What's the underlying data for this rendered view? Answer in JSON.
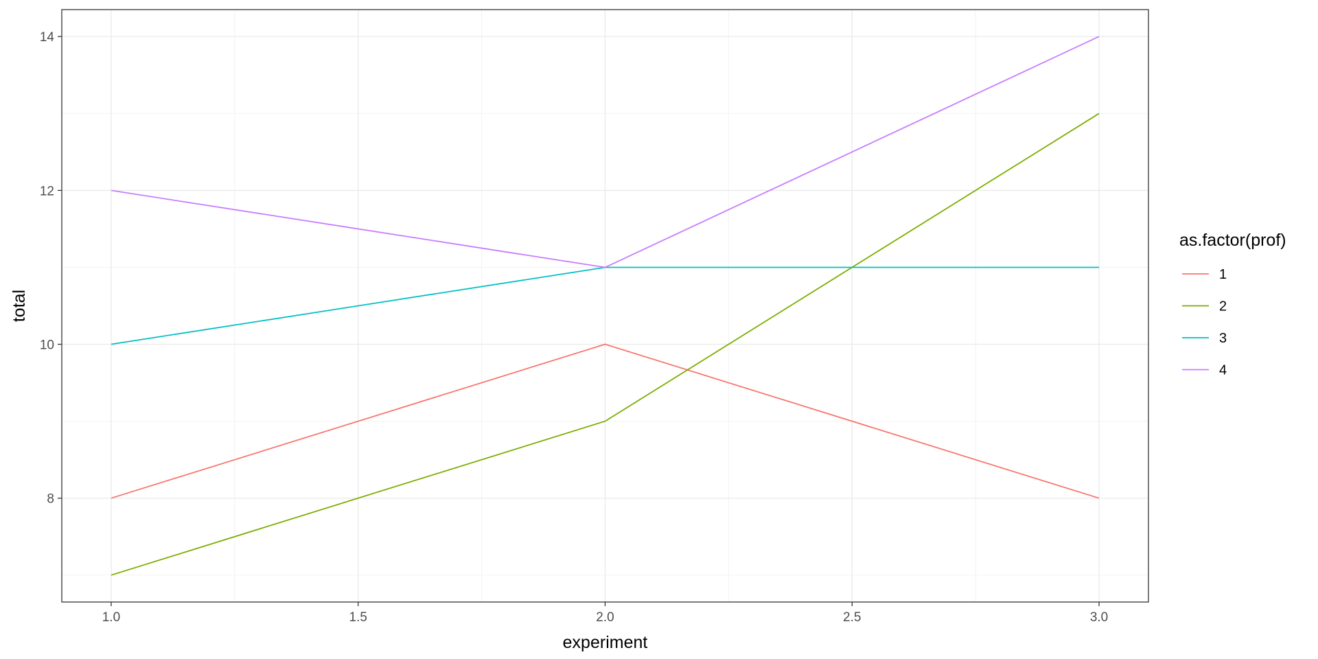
{
  "chart_data": {
    "type": "line",
    "xlabel": "experiment",
    "ylabel": "total",
    "xlim": [
      0.9,
      3.1
    ],
    "ylim": [
      6.65,
      14.35
    ],
    "x_ticks": [
      1.0,
      1.5,
      2.0,
      2.5,
      3.0
    ],
    "x_tick_labels": [
      "1.0",
      "1.5",
      "2.0",
      "2.5",
      "3.0"
    ],
    "y_ticks": [
      8,
      10,
      12,
      14
    ],
    "y_tick_labels": [
      "8",
      "10",
      "12",
      "14"
    ],
    "grid": true,
    "legend": {
      "title": "as.factor(prof)",
      "placement": "right"
    },
    "series": [
      {
        "name": "1",
        "color": "#F8766D",
        "x": [
          1,
          2,
          3
        ],
        "y": [
          8,
          10,
          8
        ]
      },
      {
        "name": "2",
        "color": "#7CAE00",
        "x": [
          1,
          2,
          3
        ],
        "y": [
          7,
          9,
          13
        ]
      },
      {
        "name": "3",
        "color": "#00BFC4",
        "x": [
          1,
          2,
          3
        ],
        "y": [
          10,
          11,
          11
        ]
      },
      {
        "name": "4",
        "color": "#C77CFF",
        "x": [
          1,
          2,
          3
        ],
        "y": [
          12,
          11,
          14
        ]
      }
    ]
  }
}
